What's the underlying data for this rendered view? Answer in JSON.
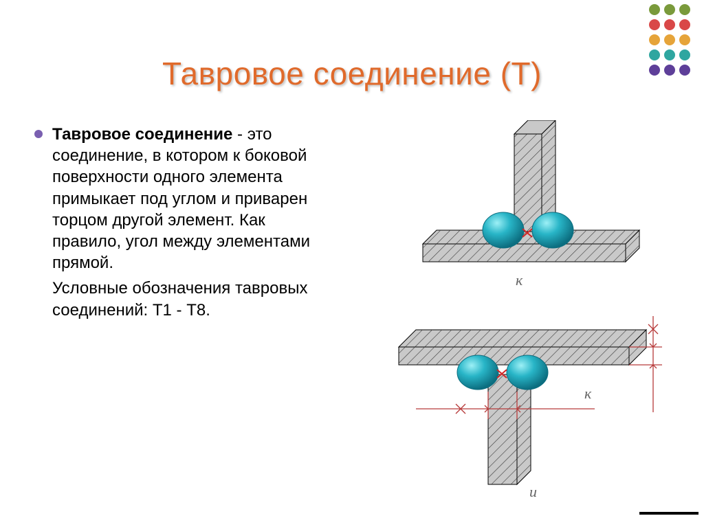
{
  "decor": {
    "rows": 5,
    "cols": 3,
    "colors": [
      "#7a9a3b",
      "#7a9a3b",
      "#7a9a3b",
      "#d94848",
      "#d94848",
      "#d94848",
      "#e6a43a",
      "#e6a43a",
      "#e6a43a",
      "#2fa6a0",
      "#2fa6a0",
      "#2fa6a0",
      "#5e3f99",
      "#5e3f99",
      "#5e3f99"
    ]
  },
  "title": {
    "text": "Тавровое соединение (Т)",
    "color": "#e06a2b"
  },
  "bullet": {
    "color": "#7a5fb0"
  },
  "text": {
    "term": "Тавровое соединение",
    "definition": " - это соединение, в котором к боковой поверхности одного элемента примыкает под углом и приварен торцом другой элемент. Как правило, угол между элементами прямой.",
    "notation": "Условные обозначения тавровых соединений: Т1 - Т8."
  },
  "labels": {
    "k": "к",
    "kTop": "к",
    "kSide": "и"
  },
  "diagram": {
    "plate_fill": "#c9c9c9",
    "plate_stroke": "#000000",
    "hatch_stroke": "#3a3a3a",
    "weld_fill": "#28b5c7",
    "weld_highlight": "#8be6ef",
    "weld_shadow": "#0c6e80",
    "dim_color": "#b73a3a"
  }
}
